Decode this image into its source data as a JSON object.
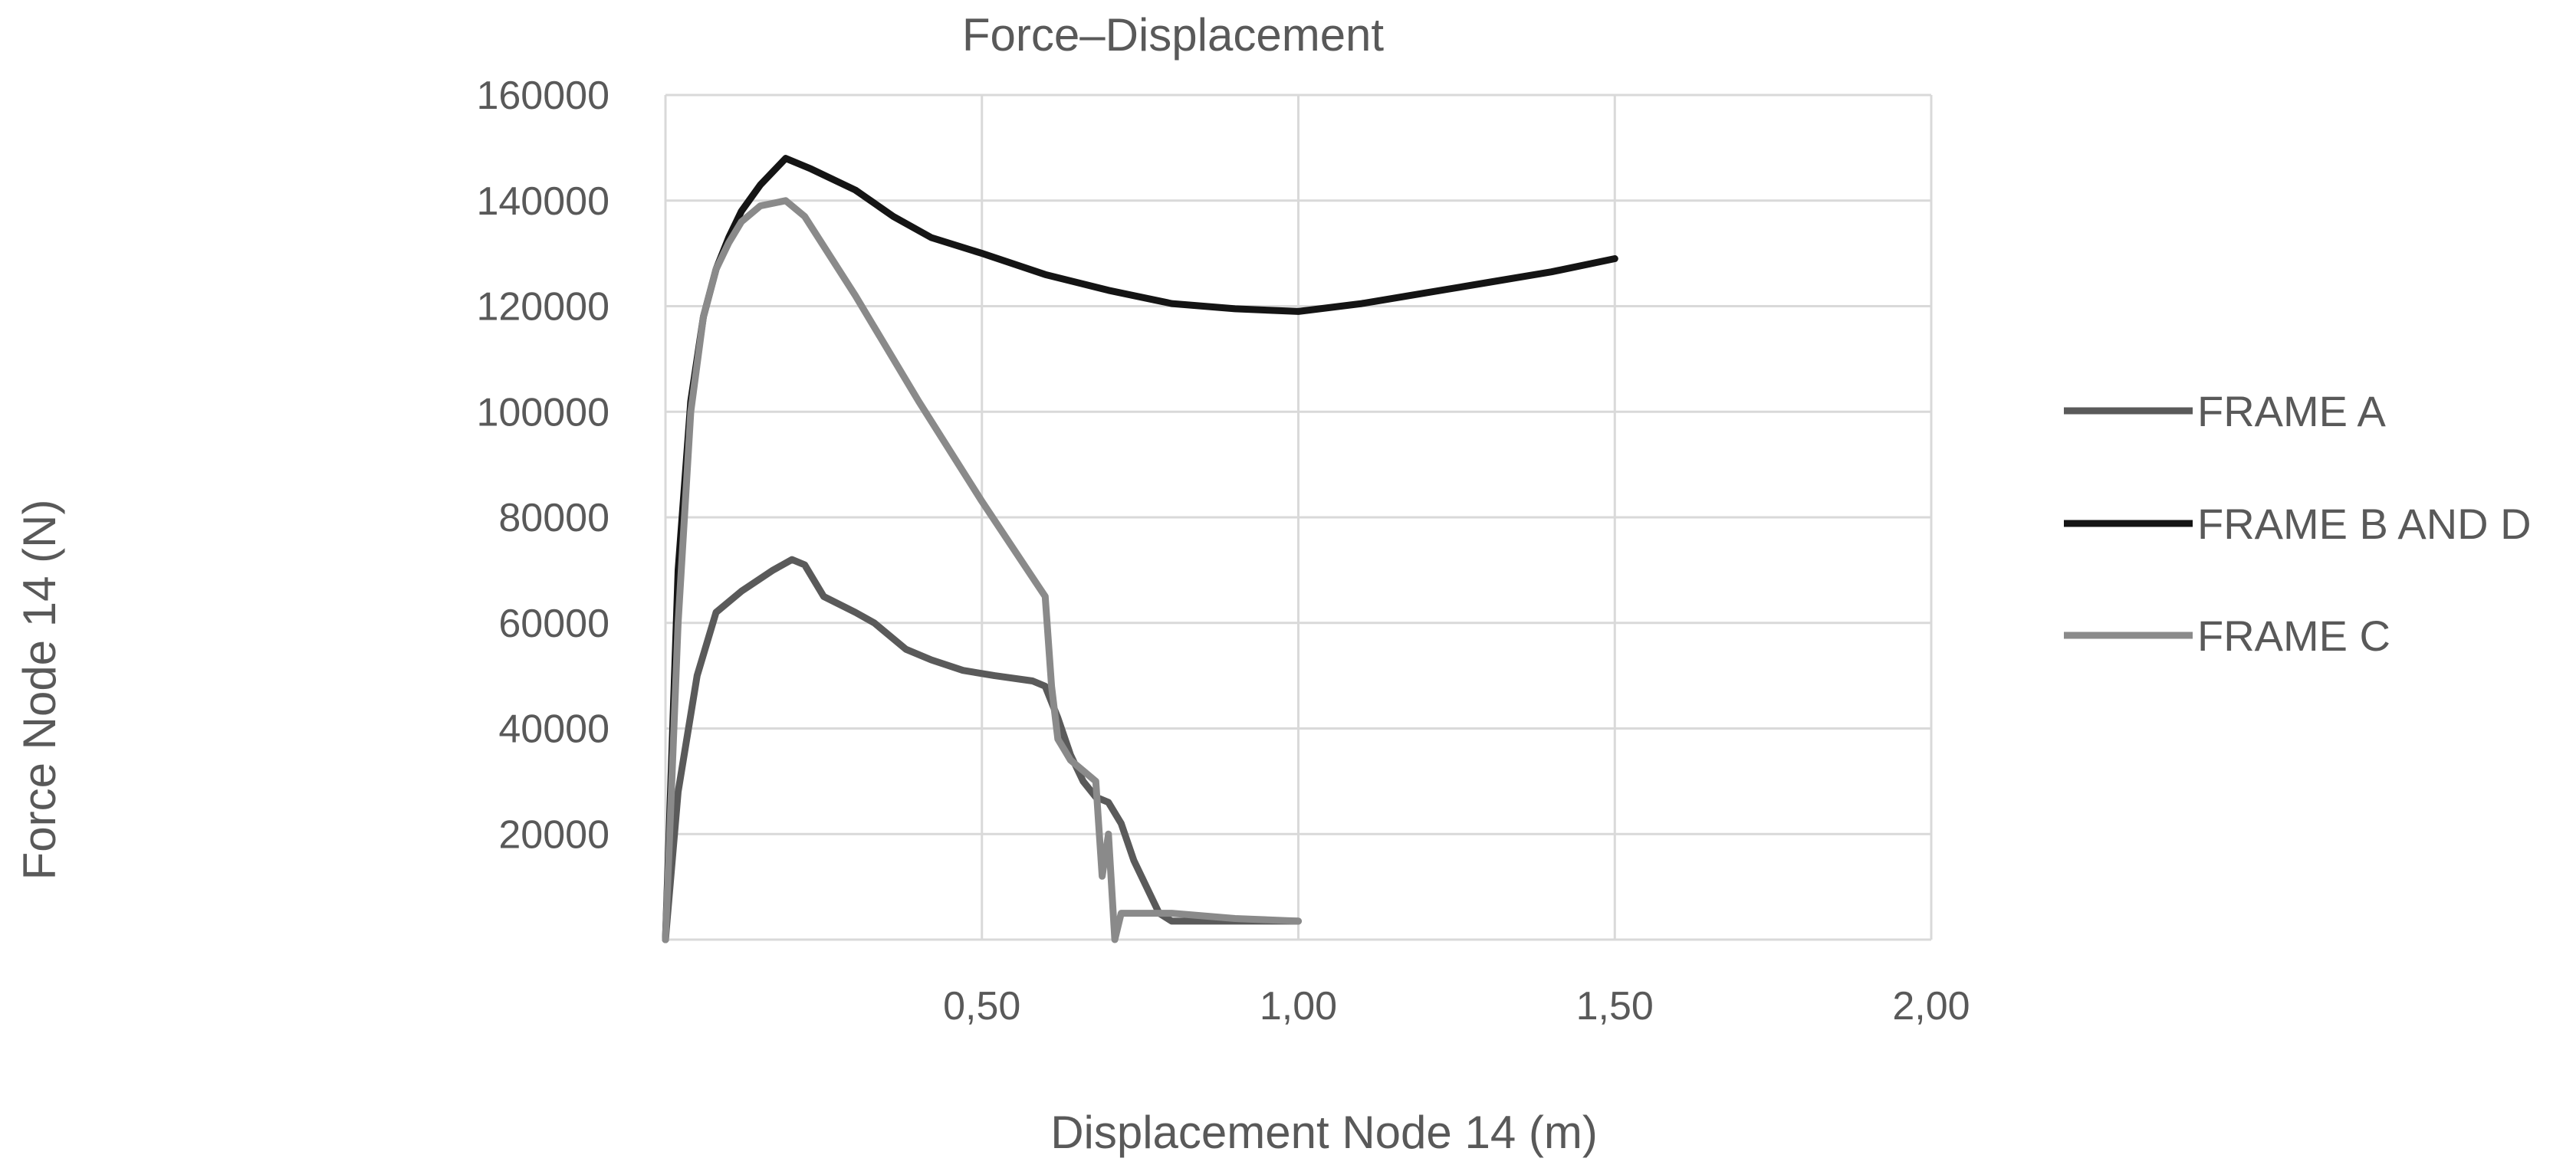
{
  "chart_data": {
    "type": "line",
    "title": "Force–Displacement",
    "xlabel": "Displacement Node 14 (m)",
    "ylabel": "Force Node 14 (N)",
    "xlim": [
      0,
      2.0
    ],
    "ylim": [
      0,
      160000
    ],
    "xticks": [
      {
        "value": 0.5,
        "label": "0,50"
      },
      {
        "value": 1.0,
        "label": "1,00"
      },
      {
        "value": 1.5,
        "label": "1,50"
      },
      {
        "value": 2.0,
        "label": "2,00"
      }
    ],
    "yticks": [
      {
        "value": 20000,
        "label": "20000"
      },
      {
        "value": 40000,
        "label": "40000"
      },
      {
        "value": 60000,
        "label": "60000"
      },
      {
        "value": 80000,
        "label": "80000"
      },
      {
        "value": 100000,
        "label": "100000"
      },
      {
        "value": 120000,
        "label": "120000"
      },
      {
        "value": 140000,
        "label": "140000"
      },
      {
        "value": 160000,
        "label": "160000"
      }
    ],
    "grid": true,
    "legend_position": "right",
    "series": [
      {
        "name": "FRAME A",
        "color": "#5a5a5a",
        "x": [
          0,
          0.02,
          0.05,
          0.08,
          0.12,
          0.17,
          0.2,
          0.22,
          0.25,
          0.3,
          0.33,
          0.38,
          0.42,
          0.47,
          0.52,
          0.58,
          0.6,
          0.62,
          0.64,
          0.66,
          0.68,
          0.7,
          0.72,
          0.74,
          0.78,
          0.8,
          1.0
        ],
        "y": [
          0,
          28000,
          50000,
          62000,
          66000,
          70000,
          72000,
          71000,
          65000,
          62000,
          60000,
          55000,
          53000,
          51000,
          50000,
          49000,
          48000,
          42000,
          35000,
          30000,
          27000,
          26000,
          22000,
          15000,
          5000,
          3500,
          3500
        ]
      },
      {
        "name": "FRAME B AND D",
        "color": "#141414",
        "x": [
          0,
          0.02,
          0.04,
          0.06,
          0.08,
          0.1,
          0.12,
          0.15,
          0.19,
          0.23,
          0.3,
          0.36,
          0.42,
          0.5,
          0.6,
          0.7,
          0.8,
          0.9,
          1.0,
          1.1,
          1.2,
          1.3,
          1.4,
          1.5
        ],
        "y": [
          0,
          70000,
          102000,
          118000,
          127000,
          133000,
          138000,
          143000,
          148000,
          146000,
          142000,
          137000,
          133000,
          130000,
          126000,
          123000,
          120500,
          119500,
          119000,
          120500,
          122500,
          124500,
          126500,
          129000
        ]
      },
      {
        "name": "FRAME C",
        "color": "#8a8a8a",
        "x": [
          0,
          0.02,
          0.04,
          0.06,
          0.08,
          0.1,
          0.12,
          0.15,
          0.19,
          0.22,
          0.3,
          0.4,
          0.5,
          0.55,
          0.6,
          0.61,
          0.62,
          0.63,
          0.64,
          0.66,
          0.68,
          0.69,
          0.7,
          0.71,
          0.72,
          0.75,
          0.8,
          0.9,
          1.0
        ],
        "y": [
          0,
          60000,
          100000,
          118000,
          127000,
          132000,
          136000,
          139000,
          140000,
          137000,
          122000,
          102000,
          83000,
          74000,
          65000,
          48000,
          38000,
          36000,
          34000,
          32000,
          30000,
          12000,
          20000,
          0,
          5000,
          5000,
          5000,
          4000,
          3500
        ]
      }
    ]
  }
}
